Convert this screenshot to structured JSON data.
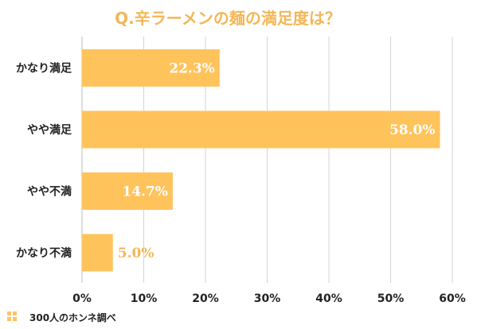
{
  "chart_data": {
    "type": "bar",
    "orientation": "horizontal",
    "title": "Q.辛ラーメンの麺の満足度は？",
    "categories": [
      "かなり満足",
      "やや満足",
      "やや不満",
      "かなり不満"
    ],
    "values": [
      22.3,
      58.0,
      14.7,
      5.0
    ],
    "value_labels": [
      "22.3%",
      "58.0%",
      "14.7%",
      "5.0%"
    ],
    "xlabel": "",
    "ylabel": "",
    "xlim": [
      0,
      60
    ],
    "x_ticks": [
      0,
      10,
      20,
      30,
      40,
      50,
      60
    ],
    "x_tick_labels": [
      "0%",
      "10%",
      "20%",
      "30%",
      "40%",
      "50%",
      "60%"
    ],
    "grid": true,
    "legend": "none",
    "source_note": "300人のホンネ調べ",
    "colors": {
      "title": "#f3b757",
      "bar": "#ffc35c",
      "label_inside": "#ffffff",
      "label_outside": "#f3b757",
      "grid": "#d4d4d4",
      "text": "#222222"
    }
  }
}
